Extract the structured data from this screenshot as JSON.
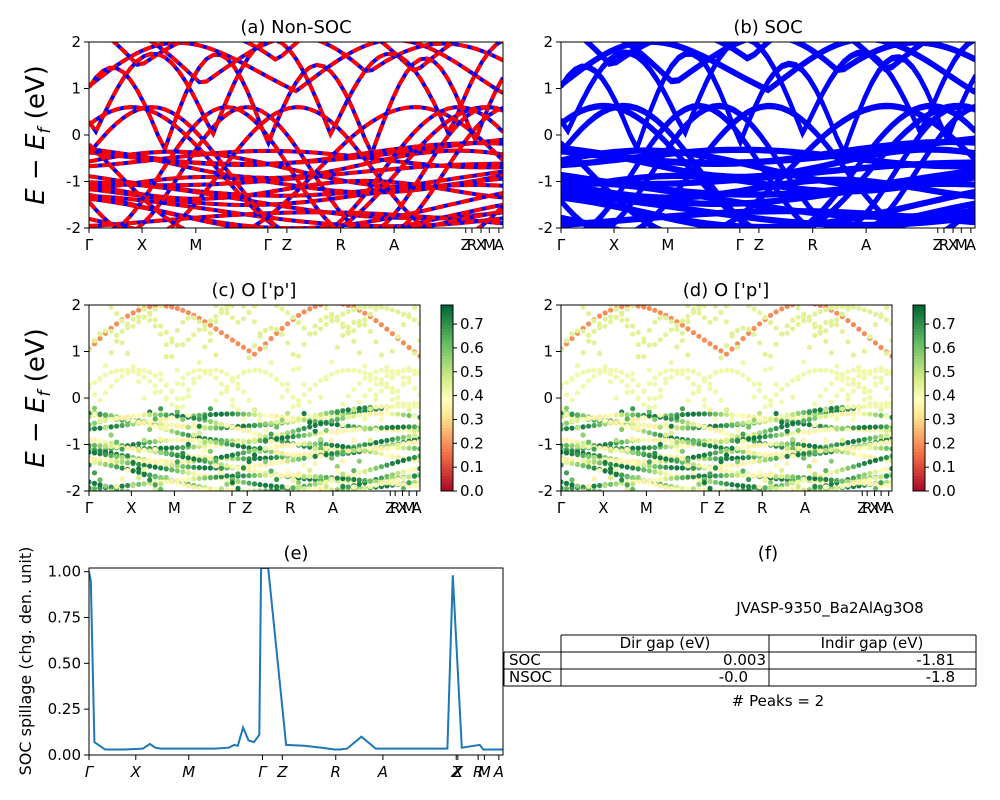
{
  "chart_data": [
    {
      "id": "a",
      "type": "line",
      "title": "(a) Non-SOC",
      "ylabel": "E - E_f (eV)",
      "ylim": [
        -2,
        2
      ],
      "yticks": [
        -2,
        -1,
        0,
        1,
        2
      ],
      "kpath_labels": [
        "Γ",
        "X",
        "M",
        "Γ",
        "Z",
        "R",
        "A",
        "Z",
        "R",
        "X",
        "M",
        "A"
      ],
      "series_colors": [
        "#0000ff",
        "#ff0000"
      ],
      "series": [
        {
          "name": "",
          "style": "solid blue",
          "x": [
            0,
            0.5,
            1,
            1.6,
            2.1,
            2.6,
            3.1,
            3.6,
            4.1,
            4.5,
            5.0,
            5.5,
            6.0,
            6.5,
            7.0,
            7.5,
            7.9
          ],
          "y": [
            0.0,
            0.35,
            0.95,
            1.55,
            1.85,
            1.3,
            0.2,
            -0.5,
            -1.1,
            -0.4,
            0.2,
            0.9,
            1.65,
            1.9,
            1.2,
            0.1,
            -0.6
          ]
        },
        {
          "name": "",
          "style": "dashed red",
          "x": [
            0,
            0.5,
            1,
            1.6,
            2.1,
            2.6,
            3.1,
            3.6,
            4.1,
            4.5,
            5.0,
            5.5,
            6.0,
            6.5,
            7.0,
            7.5,
            7.9
          ],
          "y": [
            0.0,
            0.35,
            0.95,
            1.55,
            1.85,
            1.3,
            0.2,
            -0.5,
            -1.1,
            -0.4,
            0.2,
            0.9,
            1.65,
            1.9,
            1.2,
            0.1,
            -0.6
          ]
        },
        {
          "name": "",
          "style": "cond",
          "x": [
            0,
            0.6,
            1.2,
            1.8,
            2.4,
            3.0,
            3.5,
            4.0,
            4.5,
            5.0,
            5.5,
            6.0,
            6.5,
            7.0,
            7.5,
            7.9
          ],
          "y": [
            1.05,
            1.6,
            1.9,
            1.95,
            2.0,
            2.0,
            1.2,
            1.05,
            1.15,
            1.6,
            1.95,
            2.0,
            2.0,
            1.9,
            1.95,
            2.0
          ]
        },
        {
          "name": "",
          "style": "valence",
          "x": [
            0,
            0.6,
            1.2,
            1.8,
            2.4,
            3.0,
            3.6,
            4.2,
            4.8,
            5.4,
            6.0,
            6.6,
            7.2,
            7.9
          ],
          "y": [
            -0.35,
            -0.5,
            -0.6,
            -0.75,
            -0.6,
            -0.45,
            -0.5,
            -0.65,
            -0.5,
            -0.4,
            -0.55,
            -0.7,
            -0.55,
            -0.6
          ]
        },
        {
          "name": "",
          "style": "valence",
          "x": [
            0,
            0.6,
            1.2,
            1.8,
            2.4,
            3.0,
            3.6,
            4.2,
            4.8,
            5.4,
            6.0,
            6.6,
            7.2,
            7.9
          ],
          "y": [
            -1.2,
            -1.05,
            -0.85,
            -0.95,
            -1.15,
            -1.0,
            -0.85,
            -1.05,
            -1.1,
            -0.9,
            -0.85,
            -1.0,
            -0.95,
            -0.8
          ]
        },
        {
          "name": "",
          "style": "valence",
          "x": [
            0,
            0.6,
            1.2,
            1.8,
            2.4,
            3.0,
            3.6,
            4.2,
            4.8,
            5.4,
            6.0,
            6.6,
            7.2,
            7.9
          ],
          "y": [
            -1.6,
            -1.45,
            -1.3,
            -1.55,
            -1.75,
            -1.4,
            -1.2,
            -1.35,
            -1.6,
            -1.5,
            -1.25,
            -1.4,
            -1.55,
            -1.3
          ]
        }
      ]
    },
    {
      "id": "b",
      "type": "line",
      "title": "(b) SOC",
      "ylim": [
        -2,
        2
      ],
      "yticks": [
        -2,
        -1,
        0,
        1,
        2
      ],
      "kpath_labels": [
        "Γ",
        "X",
        "M",
        "Γ",
        "Z",
        "R",
        "A",
        "Z",
        "R",
        "X",
        "M",
        "A"
      ],
      "series_colors": [
        "#0000ff"
      ]
    },
    {
      "id": "c",
      "type": "scatter",
      "title": "(c)  O ['p']",
      "ylabel": "E - E_f (eV)",
      "ylim": [
        -2,
        2
      ],
      "yticks": [
        -2,
        -1,
        0,
        1,
        2
      ],
      "kpath_labels": [
        "Γ",
        "X",
        "M",
        "Γ",
        "Z",
        "R",
        "A",
        "Z",
        "R",
        "X",
        "M",
        "A"
      ],
      "colorbar_ticks": [
        "0.0",
        "0.1",
        "0.2",
        "0.3",
        "0.4",
        "0.5",
        "0.6",
        "0.7"
      ],
      "colormap": "RdYlGn"
    },
    {
      "id": "d",
      "type": "scatter",
      "title": "(d) O ['p']",
      "ylim": [
        -2,
        2
      ],
      "yticks": [
        -2,
        -1,
        0,
        1,
        2
      ],
      "kpath_labels": [
        "Γ",
        "X",
        "M",
        "Γ",
        "Z",
        "R",
        "A",
        "Z",
        "R",
        "X",
        "M",
        "A"
      ],
      "colorbar_ticks": [
        "0.0",
        "0.1",
        "0.2",
        "0.3",
        "0.4",
        "0.5",
        "0.6",
        "0.7"
      ],
      "colormap": "RdYlGn"
    },
    {
      "id": "e",
      "type": "line",
      "title": "(e)",
      "ylabel": "SOC spillage (chg. den. unit)",
      "ylim": [
        0,
        1.02
      ],
      "yticks": [
        "0.00",
        "0.25",
        "0.50",
        "0.75",
        "1.00"
      ],
      "kpath_labels": [
        "Γ",
        "X",
        "M",
        "Γ",
        "Z",
        "R",
        "A",
        "Z",
        "X",
        "R",
        "M",
        "A"
      ],
      "series": [
        {
          "name": "",
          "color": "#1f77b4",
          "x": [
            0,
            0.05,
            0.15,
            0.3,
            0.45,
            0.6,
            1.0,
            1.5,
            1.7,
            1.85,
            2.0,
            2.5,
            3.0,
            3.5,
            3.9,
            4.05,
            4.15,
            4.3,
            4.45,
            4.6,
            4.75,
            4.8,
            5.0,
            5.5,
            6.0,
            6.5,
            6.85,
            7.0,
            7.2,
            7.6,
            8.0,
            9.2,
            9.7,
            10.0,
            10.15,
            10.4,
            10.55,
            10.9,
            11.0,
            11.3,
            11.55
          ],
          "y": [
            1.0,
            0.95,
            0.07,
            0.05,
            0.03,
            0.03,
            0.03,
            0.035,
            0.06,
            0.04,
            0.035,
            0.035,
            0.035,
            0.035,
            0.04,
            0.055,
            0.05,
            0.15,
            0.08,
            0.07,
            0.11,
            1.02,
            1.02,
            0.055,
            0.05,
            0.04,
            0.03,
            0.03,
            0.035,
            0.1,
            0.035,
            0.035,
            0.035,
            0.035,
            0.98,
            0.04,
            0.045,
            0.055,
            0.03,
            0.03,
            0.03
          ]
        }
      ]
    }
  ],
  "panel_f": {
    "title": "(f)",
    "material": "JVASP-9350_Ba2AlAg3O8",
    "table_headers": [
      "",
      "Dir gap (eV)",
      "Indir gap (eV)"
    ],
    "rows": [
      {
        "label": "SOC",
        "dir": "0.003",
        "indir": "-1.81"
      },
      {
        "label": "NSOC",
        "dir": "-0.0",
        "indir": "-1.8"
      }
    ],
    "peaks": "# Peaks = 2"
  }
}
